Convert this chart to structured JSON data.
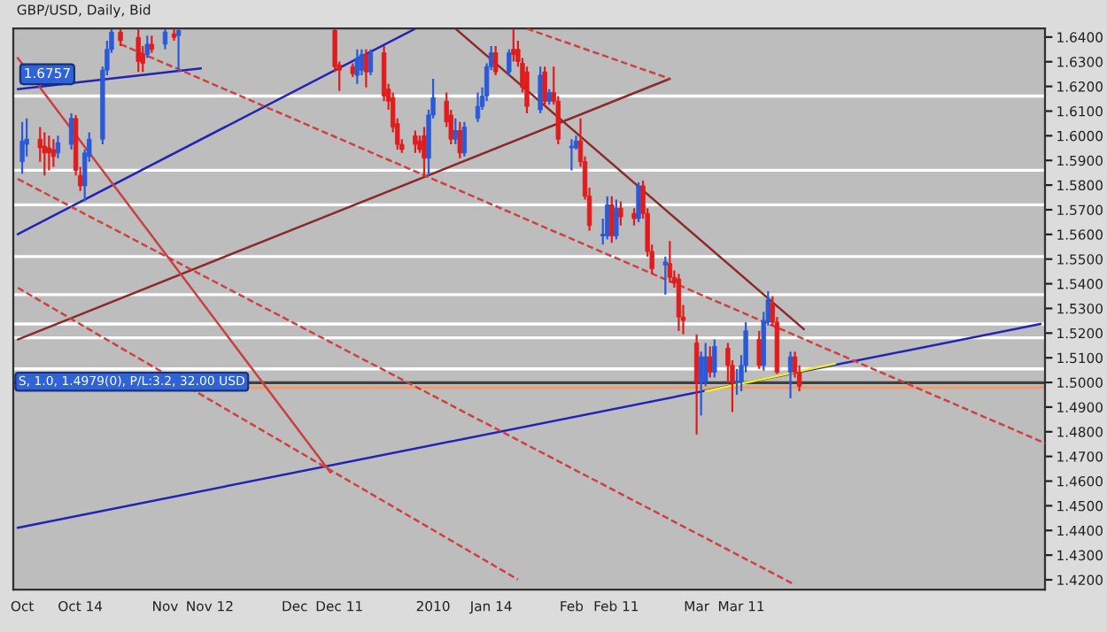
{
  "chart_data": {
    "type": "candlestick",
    "title": "GBP/USD, Daily, Bid",
    "annotations": [
      "1.6757"
    ],
    "colors": [
      "#2a5ad8",
      "#2a5ad8",
      "#e01c1c",
      "#e01c1c",
      "#e01c1c",
      "#e01c1c",
      "#2a5ad8",
      "#2a5ad8",
      "#e01c1c",
      "#e01c1c",
      "#2a5ad8",
      "#2a5ad8",
      "#2a5ad8",
      "#2a5ad8",
      "#2a5ad8",
      "#e01c1c",
      "#e01c1c",
      "#e01c1c",
      "#2a5ad8",
      "#e01c1c",
      "#2a5ad8",
      "#e01c1c",
      "#2a5ad8",
      "#e01c1c",
      "#e01c1c",
      "#e01c1c",
      "#2a5ad8",
      "#2a5ad8",
      "#e01c1c",
      "#2a5ad8",
      "#e01c1c",
      "#e01c1c",
      "#e01c1c",
      "#e01c1c",
      "#e01c1c",
      "#e01c1c",
      "#e01c1c",
      "#e01c1c",
      "#2a5ad8",
      "#2a5ad8",
      "#e01c1c",
      "#e01c1c",
      "#2a5ad8",
      "#e01c1c",
      "#2a5ad8",
      "#2a5ad8",
      "#2a5ad8",
      "#2a5ad8",
      "#2a5ad8",
      "#e01c1c",
      "#2a5ad8",
      "#e01c1c",
      "#e01c1c",
      "#e01c1c",
      "#e01c1c",
      "#2a5ad8",
      "#e01c1c",
      "#2a5ad8",
      "#e01c1c",
      "#e01c1c",
      "#2a5ad8",
      "#2a5ad8",
      "#e01c1c",
      "#e01c1c",
      "#e01c1c",
      "#2a5ad8",
      "#2a5ad8",
      "#e01c1c",
      "#2a5ad8",
      "#e01c1c",
      "#e01c1c",
      "#2a5ad8",
      "#e01c1c",
      "#e01c1c",
      "#e01c1c",
      "#2a5ad8",
      "#e01c1c",
      "#e01c1c",
      "#e01c1c",
      "#e01c1c",
      "#e01c1c",
      "#2a5ad8",
      "#2a5ad8",
      "#e01c1c",
      "#2a5ad8",
      "#e01c1c",
      "#e01c1c",
      "#2a5ad8",
      "#2a5ad8",
      "#2a5ad8",
      "#e01c1c",
      "#2a5ad8",
      "#2a5ad8",
      "#e01c1c",
      "#e01c1c",
      "#2a5ad8",
      "#e01c1c",
      "#e01c1c"
    ],
    "x": [
      "2009-10-01",
      "2009-10-02",
      "2009-10-05",
      "2009-10-06",
      "2009-10-07",
      "2009-10-08",
      "2009-10-09",
      "2009-10-12",
      "2009-10-13",
      "2009-10-14",
      "2009-10-15",
      "2009-10-16",
      "2009-10-19",
      "2009-10-20",
      "2009-10-21",
      "2009-10-23",
      "2009-10-27",
      "2009-10-28",
      "2009-10-29",
      "2009-10-30",
      "2009-11-02",
      "2009-11-04",
      "2009-11-05",
      "2009-12-10",
      "2009-12-11",
      "2009-12-14",
      "2009-12-15",
      "2009-12-16",
      "2009-12-17",
      "2009-12-18",
      "2009-12-21",
      "2009-12-22",
      "2009-12-23",
      "2009-12-24",
      "2009-12-25",
      "2009-12-28",
      "2009-12-29",
      "2009-12-30",
      "2009-12-31",
      "2010-01-01",
      "2010-01-04",
      "2010-01-05",
      "2010-01-06",
      "2010-01-07",
      "2010-01-08",
      "2010-01-11",
      "2010-01-12",
      "2010-01-13",
      "2010-01-14",
      "2010-01-15",
      "2010-01-18",
      "2010-01-19",
      "2010-01-20",
      "2010-01-21",
      "2010-01-22",
      "2010-01-25",
      "2010-01-26",
      "2010-01-27",
      "2010-01-28",
      "2010-01-29",
      "2010-02-01",
      "2010-02-02",
      "2010-02-03",
      "2010-02-04",
      "2010-02-05",
      "2010-02-08",
      "2010-02-09",
      "2010-02-10",
      "2010-02-11",
      "2010-02-12",
      "2010-02-15",
      "2010-02-16",
      "2010-02-17",
      "2010-02-18",
      "2010-02-19",
      "2010-02-22",
      "2010-02-23",
      "2010-02-24",
      "2010-02-25",
      "2010-02-26",
      "2010-03-01",
      "2010-03-02",
      "2010-03-03",
      "2010-03-04",
      "2010-03-05",
      "2010-03-08",
      "2010-03-09",
      "2010-03-10",
      "2010-03-11",
      "2010-03-12",
      "2010-03-15",
      "2010-03-16",
      "2010-03-17",
      "2010-03-18",
      "2010-03-19",
      "2010-03-22",
      "2010-03-23",
      "2010-03-24"
    ],
    "ohlc": [
      [
        1.5895,
        1.6056,
        1.5846,
        1.5979
      ],
      [
        1.5965,
        1.607,
        1.5916,
        1.5986
      ],
      [
        1.5986,
        1.6035,
        1.5895,
        1.5951
      ],
      [
        1.5958,
        1.6014,
        1.5839,
        1.593
      ],
      [
        1.5951,
        1.6,
        1.586,
        1.593
      ],
      [
        1.5944,
        1.5986,
        1.5874,
        1.5916
      ],
      [
        1.593,
        1.6,
        1.5909,
        1.5972
      ],
      [
        1.5965,
        1.6091,
        1.5944,
        1.607
      ],
      [
        1.607,
        1.6084,
        1.5839,
        1.586
      ],
      [
        1.5839,
        1.5874,
        1.5776,
        1.5797
      ],
      [
        1.5797,
        1.5944,
        1.5734,
        1.593
      ],
      [
        1.5916,
        1.6014,
        1.5895,
        1.5986
      ],
      [
        1.5986,
        1.628,
        1.5965,
        1.6266
      ],
      [
        1.6266,
        1.6385,
        1.6245,
        1.635
      ],
      [
        1.635,
        1.6434,
        1.6336,
        1.642
      ],
      [
        1.642,
        1.6434,
        1.6364,
        1.6385
      ],
      [
        1.6399,
        1.6434,
        1.6259,
        1.6301
      ],
      [
        1.6329,
        1.6364,
        1.6259,
        1.6294
      ],
      [
        1.6329,
        1.6406,
        1.6315,
        1.6371
      ],
      [
        1.6371,
        1.6406,
        1.6336,
        1.635
      ],
      [
        1.6371,
        1.6434,
        1.635,
        1.642
      ],
      [
        1.6413,
        1.6434,
        1.6385,
        1.6399
      ],
      [
        1.6406,
        1.6434,
        1.6259,
        1.6427
      ],
      [
        1.6427,
        1.6434,
        1.6259,
        1.628
      ],
      [
        1.6287,
        1.6301,
        1.6182,
        1.6266
      ],
      [
        1.628,
        1.6294,
        1.6238,
        1.6252
      ],
      [
        1.6245,
        1.635,
        1.621,
        1.6315
      ],
      [
        1.6266,
        1.635,
        1.6245,
        1.6329
      ],
      [
        1.6329,
        1.635,
        1.6196,
        1.6259
      ],
      [
        1.6259,
        1.635,
        1.6245,
        1.6336
      ],
      [
        1.6336,
        1.6364,
        1.614,
        1.6161
      ],
      [
        1.6189,
        1.621,
        1.6105,
        1.614
      ],
      [
        1.6154,
        1.6175,
        1.6014,
        1.6035
      ],
      [
        1.6049,
        1.607,
        1.5944,
        1.5965
      ],
      [
        1.5965,
        1.5986,
        1.593,
        1.5944
      ],
      [
        1.6,
        1.6021,
        1.593,
        1.5965
      ],
      [
        1.5979,
        1.6,
        1.593,
        1.5944
      ],
      [
        1.6,
        1.6035,
        1.5839,
        1.5909
      ],
      [
        1.5909,
        1.6105,
        1.5839,
        1.6084
      ],
      [
        1.6084,
        1.6231,
        1.607,
        1.6154
      ],
      [
        1.614,
        1.6175,
        1.6035,
        1.6056
      ],
      [
        1.6084,
        1.6105,
        1.5965,
        1.5986
      ],
      [
        1.5986,
        1.607,
        1.5965,
        1.6021
      ],
      [
        1.6021,
        1.6056,
        1.5909,
        1.593
      ],
      [
        1.593,
        1.6056,
        1.5916,
        1.6035
      ],
      [
        1.607,
        1.6175,
        1.6056,
        1.6119
      ],
      [
        1.6119,
        1.6196,
        1.6105,
        1.6161
      ],
      [
        1.6161,
        1.6294,
        1.614,
        1.628
      ],
      [
        1.628,
        1.6364,
        1.6266,
        1.6336
      ],
      [
        1.6336,
        1.6364,
        1.6245,
        1.6259
      ],
      [
        1.6259,
        1.635,
        1.6245,
        1.6336
      ],
      [
        1.635,
        1.6434,
        1.6301,
        1.6329
      ],
      [
        1.635,
        1.6385,
        1.628,
        1.6301
      ],
      [
        1.6294,
        1.6315,
        1.6175,
        1.6196
      ],
      [
        1.6259,
        1.628,
        1.6091,
        1.6119
      ],
      [
        1.6105,
        1.628,
        1.6091,
        1.6245
      ],
      [
        1.6259,
        1.628,
        1.6119,
        1.614
      ],
      [
        1.614,
        1.6189,
        1.6126,
        1.6175
      ],
      [
        1.6175,
        1.628,
        1.6126,
        1.614
      ],
      [
        1.614,
        1.6161,
        1.5965,
        1.5986
      ],
      [
        1.5951,
        1.5986,
        1.586,
        1.5958
      ],
      [
        1.5951,
        1.6,
        1.5944,
        1.5979
      ],
      [
        1.5979,
        1.607,
        1.5874,
        1.5895
      ],
      [
        1.5895,
        1.5916,
        1.5741,
        1.5755
      ],
      [
        1.5755,
        1.579,
        1.5615,
        1.5636
      ],
      [
        1.5594,
        1.5664,
        1.5559,
        1.5601
      ],
      [
        1.5594,
        1.5755,
        1.558,
        1.572
      ],
      [
        1.572,
        1.5755,
        1.5566,
        1.5594
      ],
      [
        1.5594,
        1.5741,
        1.558,
        1.5706
      ],
      [
        1.5706,
        1.5734,
        1.5636,
        1.5671
      ],
      [
        1.5685,
        1.5706,
        1.5636,
        1.5664
      ],
      [
        1.5664,
        1.5811,
        1.565,
        1.5797
      ],
      [
        1.5797,
        1.5818,
        1.5664,
        1.5685
      ],
      [
        1.5685,
        1.5706,
        1.551,
        1.5531
      ],
      [
        1.5531,
        1.5559,
        1.544,
        1.5461
      ],
      [
        1.5475,
        1.551,
        1.5356,
        1.5489
      ],
      [
        1.5482,
        1.5573,
        1.5405,
        1.5426
      ],
      [
        1.5426,
        1.5454,
        1.5384,
        1.5405
      ],
      [
        1.5419,
        1.544,
        1.5209,
        1.5265
      ],
      [
        1.5265,
        1.5314,
        1.5195,
        1.5251
      ],
      [
        1.516,
        1.5195,
        1.4789,
        1.4999
      ],
      [
        1.4999,
        1.5125,
        1.4866,
        1.5104
      ],
      [
        1.5006,
        1.516,
        1.4985,
        1.5104
      ],
      [
        1.5104,
        1.5146,
        1.502,
        1.5041
      ],
      [
        1.5041,
        1.5174,
        1.502,
        1.5146
      ],
      [
        1.5139,
        1.516,
        1.4999,
        1.5069
      ],
      [
        1.5069,
        1.509,
        1.488,
        1.4999
      ],
      [
        1.4999,
        1.5055,
        1.495,
        1.5006
      ],
      [
        1.5006,
        1.5111,
        1.4964,
        1.5069
      ],
      [
        1.5069,
        1.5244,
        1.5041,
        1.5209
      ],
      [
        1.5174,
        1.5209,
        1.5055,
        1.5069
      ],
      [
        1.5069,
        1.5286,
        1.5048,
        1.5251
      ],
      [
        1.5244,
        1.537,
        1.523,
        1.5335
      ],
      [
        1.5321,
        1.5349,
        1.523,
        1.5244
      ],
      [
        1.5244,
        1.5265,
        1.5034,
        1.5041
      ],
      [
        1.5041,
        1.5125,
        1.4936,
        1.5104
      ],
      [
        1.5104,
        1.5125,
        1.502,
        1.5041
      ],
      [
        1.5041,
        1.5069,
        1.4964,
        1.4985
      ]
    ],
    "series": [
      {
        "type": "line",
        "color": "#2323b4",
        "line_style": "solid",
        "x": [
          "2009-09-30",
          "2010-05-17"
        ],
        "values": [
          1.4411,
          1.5237
        ]
      },
      {
        "type": "line",
        "color": "#2323b4",
        "line_style": "solid",
        "x": [
          "2009-09-30",
          "2009-12-28"
        ],
        "values": [
          1.5601,
          1.6434
        ]
      },
      {
        "type": "line",
        "color": "#2323b4",
        "line_style": "solid",
        "x": [
          "2009-09-30",
          "2009-11-10"
        ],
        "values": [
          1.6189,
          1.6273
        ]
      },
      {
        "type": "line",
        "color": "#f2f020",
        "line_style": "solid",
        "x": [
          "2010-03-03",
          "2010-04-01"
        ],
        "values": [
          1.4964,
          1.5076
        ]
      },
      {
        "type": "line",
        "color": "#8b2a2a",
        "line_style": "solid",
        "x": [
          "2009-09-30",
          "2010-02-23"
        ],
        "values": [
          1.5174,
          1.6231
        ]
      },
      {
        "type": "line",
        "color": "#8b2a2a",
        "line_style": "solid",
        "x": [
          "2010-01-06",
          "2010-03-25"
        ],
        "values": [
          1.6434,
          1.5216
        ]
      },
      {
        "type": "line",
        "color": "#c84040",
        "line_style": "solid",
        "x": [
          "2009-09-30",
          "2009-12-09"
        ],
        "values": [
          1.6315,
          1.4635
        ]
      },
      {
        "type": "line",
        "color": "#d04040",
        "line_style": "dashed",
        "x": [
          "2009-09-30",
          "2010-01-20"
        ],
        "values": [
          1.5384,
          1.4201
        ]
      },
      {
        "type": "line",
        "color": "#d04040",
        "line_style": "dashed",
        "x": [
          "2009-09-30",
          "2010-03-23"
        ],
        "values": [
          1.5825,
          1.418
        ]
      },
      {
        "type": "line",
        "color": "#d04040",
        "line_style": "dashed",
        "x": [
          "2010-01-22",
          "2010-02-23"
        ],
        "values": [
          1.6434,
          1.6231
        ]
      },
      {
        "type": "line",
        "color": "#d04040",
        "line_style": "dashed",
        "x": [
          "2009-10-23",
          "2010-05-18"
        ],
        "values": [
          1.6371,
          1.4754
        ]
      }
    ],
    "ref_lines": [
      {
        "axis": "y",
        "value": 1.6161,
        "color": "#ffffff"
      },
      {
        "axis": "y",
        "value": 1.586,
        "color": "#ffffff"
      },
      {
        "axis": "y",
        "value": 1.572,
        "color": "#ffffff"
      },
      {
        "axis": "y",
        "value": 1.551,
        "color": "#ffffff"
      },
      {
        "axis": "y",
        "value": 1.5356,
        "color": "#ffffff"
      },
      {
        "axis": "y",
        "value": 1.5237,
        "color": "#ffffff"
      },
      {
        "axis": "y",
        "value": 1.5181,
        "color": "#ffffff"
      },
      {
        "axis": "y",
        "value": 1.5055,
        "color": "#ffffff"
      },
      {
        "axis": "y",
        "value": 1.4999,
        "color": "#404040"
      },
      {
        "axis": "y",
        "value": 1.4979,
        "color": "#e8a070",
        "label": "S, 1.0, 1.4979(0), P/L:3.2, 32.00 USD"
      }
    ],
    "xlim": [
      "2009-09-29",
      "2010-05-18"
    ],
    "xticks": [
      {
        "value": "2009-10-01",
        "label": "Oct"
      },
      {
        "value": "2009-10-14",
        "label": "Oct 14"
      },
      {
        "value": "2009-11-02",
        "label": "Nov"
      },
      {
        "value": "2009-11-12",
        "label": "Nov 12"
      },
      {
        "value": "2009-12-01",
        "label": "Dec"
      },
      {
        "value": "2009-12-11",
        "label": "Dec 11"
      },
      {
        "value": "2010-01-01",
        "label": "2010"
      },
      {
        "value": "2010-01-14",
        "label": "Jan 14"
      },
      {
        "value": "2010-02-01",
        "label": "Feb"
      },
      {
        "value": "2010-02-11",
        "label": "Feb 11"
      },
      {
        "value": "2010-03-01",
        "label": "Mar"
      },
      {
        "value": "2010-03-11",
        "label": "Mar 11"
      }
    ],
    "ylim": [
      1.416,
      1.6435
    ],
    "yticks": [
      {
        "value": 1.42,
        "label": "1.4200"
      },
      {
        "value": 1.43,
        "label": "1.4300"
      },
      {
        "value": 1.44,
        "label": "1.4400"
      },
      {
        "value": 1.45,
        "label": "1.4500"
      },
      {
        "value": 1.46,
        "label": "1.4600"
      },
      {
        "value": 1.47,
        "label": "1.4700"
      },
      {
        "value": 1.48,
        "label": "1.4800"
      },
      {
        "value": 1.49,
        "label": "1.4900"
      },
      {
        "value": 1.5,
        "label": "1.5000"
      },
      {
        "value": 1.51,
        "label": "1.5100"
      },
      {
        "value": 1.52,
        "label": "1.5200"
      },
      {
        "value": 1.53,
        "label": "1.5300"
      },
      {
        "value": 1.54,
        "label": "1.5400"
      },
      {
        "value": 1.55,
        "label": "1.5500"
      },
      {
        "value": 1.56,
        "label": "1.5600"
      },
      {
        "value": 1.57,
        "label": "1.5700"
      },
      {
        "value": 1.58,
        "label": "1.5800"
      },
      {
        "value": 1.59,
        "label": "1.5900"
      },
      {
        "value": 1.6,
        "label": "1.6000"
      },
      {
        "value": 1.61,
        "label": "1.6100"
      },
      {
        "value": 1.62,
        "label": "1.6200"
      },
      {
        "value": 1.63,
        "label": "1.6300"
      },
      {
        "value": 1.64,
        "label": "1.6400"
      }
    ],
    "grid": false,
    "legend": false
  }
}
